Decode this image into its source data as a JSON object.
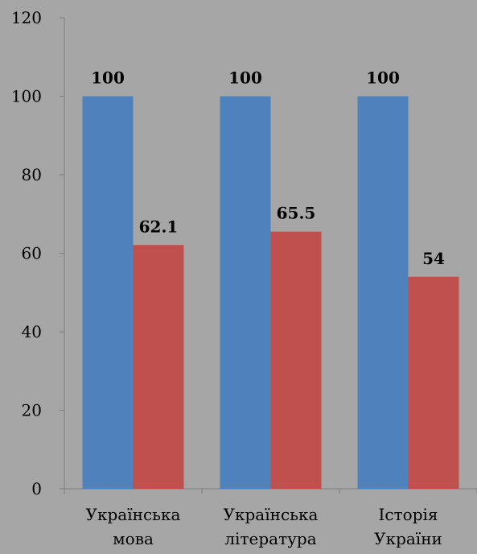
{
  "chart_data": {
    "type": "bar",
    "categories": [
      [
        "Українська",
        "мова"
      ],
      [
        "Українська",
        "література"
      ],
      [
        "Історія",
        "України"
      ]
    ],
    "series": [
      {
        "values": [
          100,
          100,
          100
        ],
        "color": "#4f81bd"
      },
      {
        "values": [
          62.1,
          65.5,
          54
        ],
        "color": "#c0504d"
      }
    ],
    "data_labels": [
      [
        "100",
        "100",
        "100"
      ],
      [
        "62.1",
        "65.5",
        "54"
      ]
    ],
    "y_ticks": [
      "0",
      "20",
      "40",
      "60",
      "80",
      "100",
      "120"
    ],
    "ylim": [
      0,
      120
    ],
    "grid": false,
    "legend": false
  }
}
